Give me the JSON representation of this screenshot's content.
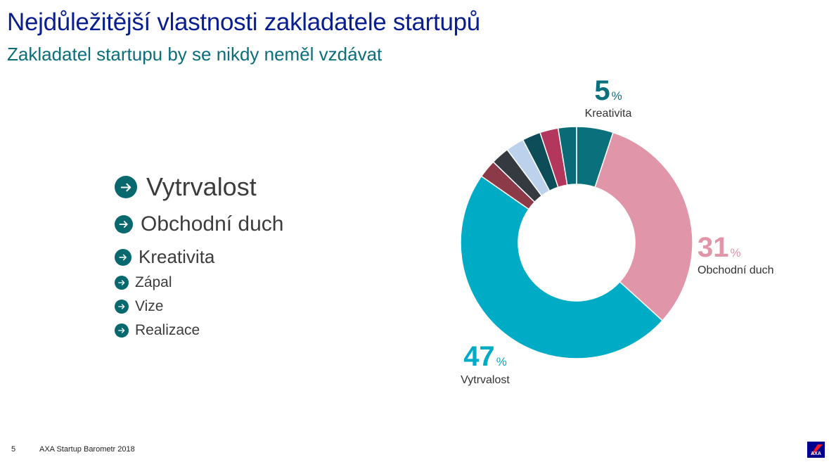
{
  "header": {
    "title": "Nejdůležitější vlastnosti zakladatele startupů",
    "subtitle": "Zakladatel startupu by se nikdy neměl vzdávat"
  },
  "bullets": [
    {
      "label": "Vytrvalost"
    },
    {
      "label": "Obchodní duch"
    },
    {
      "label": "Kreativita"
    },
    {
      "label": "Zápal"
    },
    {
      "label": "Vize"
    },
    {
      "label": "Realizace"
    }
  ],
  "chart_data": {
    "type": "pie",
    "donut": true,
    "slices": [
      {
        "name": "Kreativita",
        "value": 5,
        "color": "#0a707c",
        "value_label": "5",
        "unit": "%"
      },
      {
        "name": "Obchodní duch",
        "value": 31,
        "color": "#e095a8",
        "value_label": "31",
        "unit": "%"
      },
      {
        "name": "Vytrvalost",
        "value": 47,
        "color": "#00abc6",
        "value_label": "47",
        "unit": "%"
      },
      {
        "name": "",
        "value": 2.5,
        "color": "#8c3a48"
      },
      {
        "name": "",
        "value": 2.5,
        "color": "#343a40"
      },
      {
        "name": "",
        "value": 2.5,
        "color": "#bcd2ec"
      },
      {
        "name": "",
        "value": 2.5,
        "color": "#0d4d59"
      },
      {
        "name": "",
        "value": 2.5,
        "color": "#b3365c"
      },
      {
        "name": "",
        "value": 2.5,
        "color": "#0a6b77"
      }
    ]
  },
  "footer": {
    "page_number": "5",
    "source": "AXA Startup Barometr 2018"
  },
  "logo": {
    "text": "AXA",
    "colors": {
      "blue": "#00008f",
      "red": "#ff1721"
    }
  }
}
